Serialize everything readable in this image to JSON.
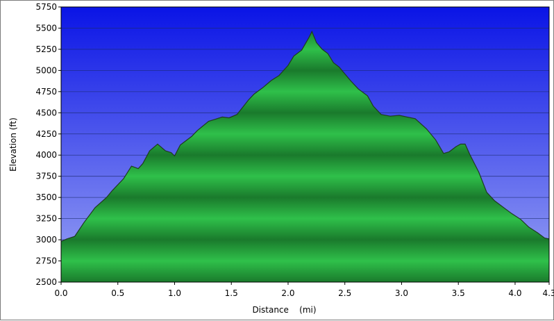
{
  "chart_data": {
    "type": "area",
    "title": "",
    "xlabel": "Distance    (mi)",
    "ylabel": "Elevation (ft)",
    "xlim": [
      0,
      4.3
    ],
    "ylim": [
      2500,
      5750
    ],
    "x_ticks": [
      0,
      0.5,
      1,
      1.5,
      2,
      2.5,
      3,
      3.5,
      4,
      4.3
    ],
    "x_tick_labels": [
      "0.0",
      "0.5",
      "1.0",
      "1.5",
      "2.0",
      "2.5",
      "3.0",
      "3.5",
      "4.0",
      "4.3"
    ],
    "y_ticks": [
      2500,
      2750,
      3000,
      3250,
      3500,
      3750,
      4000,
      4250,
      4500,
      4750,
      5000,
      5250,
      5500,
      5750
    ],
    "grid": "horizontal",
    "colors": {
      "background_top": "#0a14e6",
      "background_bottom": "#9aa4f4",
      "fill_light": "#2fc04a",
      "fill_dark": "#1a7a2c",
      "line": "#1f3a22",
      "grid": "#1a2a6e"
    },
    "series": [
      {
        "values": [
          [
            0.0,
            2980
          ],
          [
            0.05,
            3010
          ],
          [
            0.12,
            3040
          ],
          [
            0.2,
            3200
          ],
          [
            0.3,
            3380
          ],
          [
            0.4,
            3500
          ],
          [
            0.45,
            3580
          ],
          [
            0.55,
            3720
          ],
          [
            0.62,
            3870
          ],
          [
            0.68,
            3840
          ],
          [
            0.72,
            3900
          ],
          [
            0.78,
            4050
          ],
          [
            0.85,
            4130
          ],
          [
            0.92,
            4050
          ],
          [
            0.97,
            4030
          ],
          [
            1.0,
            3990
          ],
          [
            1.05,
            4120
          ],
          [
            1.15,
            4220
          ],
          [
            1.2,
            4290
          ],
          [
            1.3,
            4400
          ],
          [
            1.35,
            4420
          ],
          [
            1.42,
            4450
          ],
          [
            1.48,
            4440
          ],
          [
            1.55,
            4480
          ],
          [
            1.65,
            4650
          ],
          [
            1.7,
            4720
          ],
          [
            1.78,
            4800
          ],
          [
            1.85,
            4880
          ],
          [
            1.92,
            4940
          ],
          [
            2.0,
            5060
          ],
          [
            2.05,
            5170
          ],
          [
            2.12,
            5240
          ],
          [
            2.18,
            5380
          ],
          [
            2.21,
            5460
          ],
          [
            2.25,
            5330
          ],
          [
            2.3,
            5250
          ],
          [
            2.35,
            5200
          ],
          [
            2.4,
            5090
          ],
          [
            2.45,
            5040
          ],
          [
            2.5,
            4960
          ],
          [
            2.55,
            4880
          ],
          [
            2.62,
            4780
          ],
          [
            2.7,
            4700
          ],
          [
            2.75,
            4580
          ],
          [
            2.82,
            4480
          ],
          [
            2.9,
            4460
          ],
          [
            2.98,
            4470
          ],
          [
            3.05,
            4450
          ],
          [
            3.12,
            4430
          ],
          [
            3.22,
            4310
          ],
          [
            3.3,
            4180
          ],
          [
            3.37,
            4020
          ],
          [
            3.42,
            4040
          ],
          [
            3.48,
            4100
          ],
          [
            3.52,
            4130
          ],
          [
            3.56,
            4130
          ],
          [
            3.6,
            4010
          ],
          [
            3.68,
            3800
          ],
          [
            3.75,
            3560
          ],
          [
            3.82,
            3460
          ],
          [
            3.9,
            3380
          ],
          [
            3.97,
            3310
          ],
          [
            4.05,
            3240
          ],
          [
            4.12,
            3150
          ],
          [
            4.2,
            3080
          ],
          [
            4.26,
            3020
          ],
          [
            4.3,
            3010
          ]
        ]
      }
    ]
  }
}
